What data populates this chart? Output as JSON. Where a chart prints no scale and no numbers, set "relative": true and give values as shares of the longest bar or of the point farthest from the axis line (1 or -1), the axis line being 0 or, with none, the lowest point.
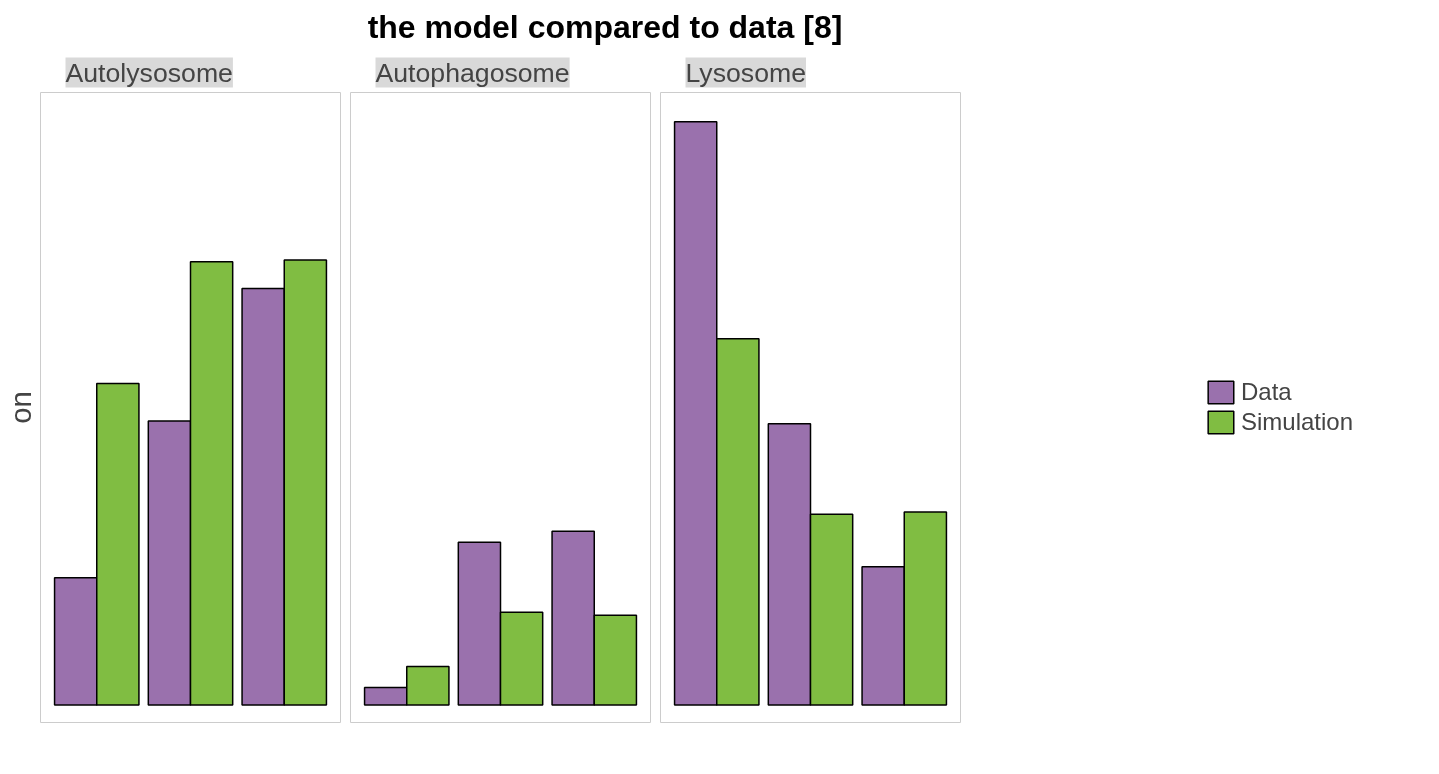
{
  "chart_data": {
    "type": "bar",
    "title": "the model compared to data [8]",
    "ylabel": "on",
    "relative": true,
    "legend": "right",
    "annotations": [
      "Autolysosome",
      "Autophagosome",
      "Lysosome"
    ],
    "categories": [
      null,
      null,
      null,
      null,
      null,
      null,
      null,
      null,
      null
    ],
    "series": [
      {
        "name": "Data",
        "color": "#9a71ad",
        "values": [
          0.218,
          0.487,
          0.714,
          0.03,
          0.279,
          0.298,
          1.0,
          0.482,
          0.237
        ]
      },
      {
        "name": "Simulation",
        "color": "#80bd42",
        "values": [
          0.551,
          0.76,
          0.763,
          0.066,
          0.159,
          0.154,
          0.628,
          0.327,
          0.331
        ]
      }
    ]
  }
}
